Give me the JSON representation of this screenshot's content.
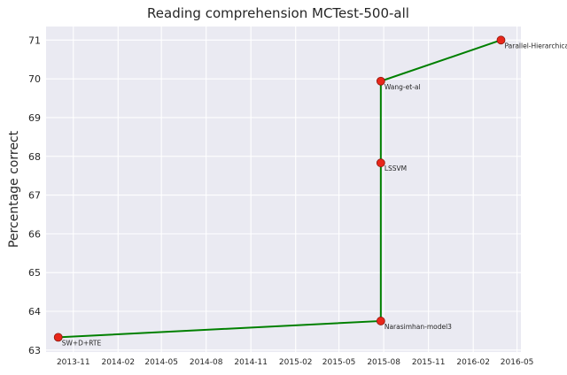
{
  "chart_data": {
    "type": "line",
    "title": "Reading comprehension MCTest-500-all",
    "xlabel": "",
    "ylabel": "Percentage correct",
    "x_axis_type": "date",
    "xlim": [
      "2013-09-06",
      "2016-05-09"
    ],
    "ylim": [
      62.95,
      71.35
    ],
    "x_ticks": [
      "2013-11-01",
      "2014-02-01",
      "2014-05-01",
      "2014-08-01",
      "2014-11-01",
      "2015-02-01",
      "2015-05-01",
      "2015-08-01",
      "2015-11-01",
      "2016-02-01",
      "2016-05-01"
    ],
    "x_tick_labels": [
      "2013-11",
      "2014-02",
      "2014-05",
      "2014-08",
      "2014-11",
      "2015-02",
      "2015-05",
      "2015-08",
      "2015-11",
      "2016-02",
      "2016-05"
    ],
    "y_ticks": [
      63,
      64,
      65,
      66,
      67,
      68,
      69,
      70,
      71
    ],
    "grid": true,
    "background": "#eaeaf2",
    "line_color": "#008000",
    "marker_color": "#e8261a",
    "marker_edge_color": "#8b1a10",
    "points": [
      {
        "label": "SW+D+RTE",
        "date": "2013-10-01",
        "value": 63.33
      },
      {
        "label": "Narasimhan-model3",
        "date": "2015-07-26",
        "value": 63.75
      },
      {
        "label": "LSSVM",
        "date": "2015-07-26",
        "value": 67.83
      },
      {
        "label": "Wang-et-al",
        "date": "2015-07-26",
        "value": 69.94
      },
      {
        "label": "Parallel-Hierarchical",
        "date": "2016-03-29",
        "value": 71.0
      }
    ]
  }
}
